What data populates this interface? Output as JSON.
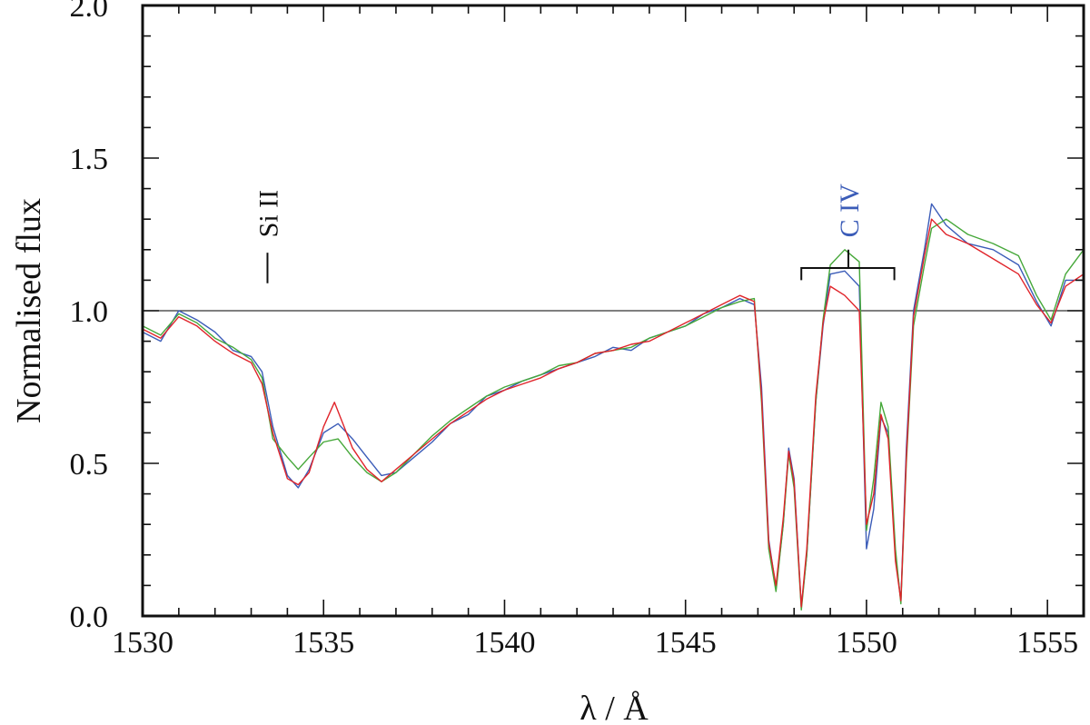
{
  "chart_data": {
    "type": "line",
    "xlabel": "λ / Å",
    "ylabel": "Normalised flux",
    "xlim": [
      1530,
      1556
    ],
    "ylim": [
      0.0,
      2.0
    ],
    "x_ticks": [
      1530,
      1535,
      1540,
      1545,
      1550,
      1555
    ],
    "x_tick_labels": [
      "1530",
      "1535",
      "1540",
      "1545",
      "1550",
      "1555"
    ],
    "y_ticks": [
      0.0,
      0.5,
      1.0,
      1.5,
      2.0
    ],
    "y_tick_labels": [
      "0.0",
      "0.5",
      "1.0",
      "1.5",
      "2.0"
    ],
    "grid": false,
    "continuum_level": 1.0,
    "series": [
      {
        "color": "#3b5cb8",
        "points": [
          [
            1530.0,
            0.93
          ],
          [
            1530.5,
            0.9
          ],
          [
            1531.0,
            1.0
          ],
          [
            1531.5,
            0.97
          ],
          [
            1532.0,
            0.93
          ],
          [
            1532.5,
            0.87
          ],
          [
            1533.0,
            0.85
          ],
          [
            1533.3,
            0.8
          ],
          [
            1533.6,
            0.62
          ],
          [
            1534.0,
            0.46
          ],
          [
            1534.3,
            0.42
          ],
          [
            1534.6,
            0.48
          ],
          [
            1535.0,
            0.6
          ],
          [
            1535.4,
            0.63
          ],
          [
            1535.8,
            0.58
          ],
          [
            1536.2,
            0.52
          ],
          [
            1536.6,
            0.46
          ],
          [
            1537.0,
            0.47
          ],
          [
            1537.5,
            0.52
          ],
          [
            1538.0,
            0.57
          ],
          [
            1538.5,
            0.63
          ],
          [
            1539.0,
            0.66
          ],
          [
            1539.5,
            0.72
          ],
          [
            1540.0,
            0.74
          ],
          [
            1540.5,
            0.77
          ],
          [
            1541.0,
            0.79
          ],
          [
            1541.5,
            0.81
          ],
          [
            1542.0,
            0.83
          ],
          [
            1542.5,
            0.85
          ],
          [
            1543.0,
            0.88
          ],
          [
            1543.5,
            0.87
          ],
          [
            1544.0,
            0.91
          ],
          [
            1544.5,
            0.93
          ],
          [
            1545.0,
            0.95
          ],
          [
            1545.5,
            0.99
          ],
          [
            1546.0,
            1.01
          ],
          [
            1546.5,
            1.04
          ],
          [
            1546.9,
            1.02
          ],
          [
            1547.1,
            0.75
          ],
          [
            1547.3,
            0.25
          ],
          [
            1547.5,
            0.09
          ],
          [
            1547.7,
            0.3
          ],
          [
            1547.85,
            0.55
          ],
          [
            1548.0,
            0.45
          ],
          [
            1548.2,
            0.03
          ],
          [
            1548.35,
            0.2
          ],
          [
            1548.6,
            0.7
          ],
          [
            1548.8,
            0.95
          ],
          [
            1549.0,
            1.12
          ],
          [
            1549.4,
            1.13
          ],
          [
            1549.8,
            1.08
          ],
          [
            1550.0,
            0.22
          ],
          [
            1550.2,
            0.35
          ],
          [
            1550.4,
            0.65
          ],
          [
            1550.6,
            0.6
          ],
          [
            1550.8,
            0.2
          ],
          [
            1550.95,
            0.05
          ],
          [
            1551.1,
            0.55
          ],
          [
            1551.3,
            1.0
          ],
          [
            1551.6,
            1.2
          ],
          [
            1551.8,
            1.35
          ],
          [
            1552.2,
            1.28
          ],
          [
            1552.8,
            1.22
          ],
          [
            1553.5,
            1.2
          ],
          [
            1554.2,
            1.15
          ],
          [
            1554.7,
            1.03
          ],
          [
            1555.1,
            0.95
          ],
          [
            1555.5,
            1.1
          ],
          [
            1556.0,
            1.1
          ]
        ]
      },
      {
        "color": "#46a83a",
        "points": [
          [
            1530.0,
            0.95
          ],
          [
            1530.5,
            0.92
          ],
          [
            1531.0,
            0.99
          ],
          [
            1531.5,
            0.96
          ],
          [
            1532.0,
            0.91
          ],
          [
            1532.5,
            0.88
          ],
          [
            1533.0,
            0.84
          ],
          [
            1533.3,
            0.78
          ],
          [
            1533.6,
            0.58
          ],
          [
            1534.0,
            0.52
          ],
          [
            1534.3,
            0.48
          ],
          [
            1534.6,
            0.52
          ],
          [
            1535.0,
            0.57
          ],
          [
            1535.4,
            0.58
          ],
          [
            1535.8,
            0.52
          ],
          [
            1536.2,
            0.47
          ],
          [
            1536.6,
            0.44
          ],
          [
            1537.0,
            0.47
          ],
          [
            1537.5,
            0.53
          ],
          [
            1538.0,
            0.59
          ],
          [
            1538.5,
            0.64
          ],
          [
            1539.0,
            0.68
          ],
          [
            1539.5,
            0.72
          ],
          [
            1540.0,
            0.75
          ],
          [
            1540.5,
            0.77
          ],
          [
            1541.0,
            0.79
          ],
          [
            1541.5,
            0.82
          ],
          [
            1542.0,
            0.83
          ],
          [
            1542.5,
            0.86
          ],
          [
            1543.0,
            0.87
          ],
          [
            1543.5,
            0.88
          ],
          [
            1544.0,
            0.91
          ],
          [
            1544.5,
            0.93
          ],
          [
            1545.0,
            0.95
          ],
          [
            1545.5,
            0.98
          ],
          [
            1546.0,
            1.01
          ],
          [
            1546.5,
            1.03
          ],
          [
            1546.9,
            1.04
          ],
          [
            1547.1,
            0.7
          ],
          [
            1547.3,
            0.22
          ],
          [
            1547.5,
            0.08
          ],
          [
            1547.7,
            0.3
          ],
          [
            1547.85,
            0.53
          ],
          [
            1548.0,
            0.42
          ],
          [
            1548.2,
            0.02
          ],
          [
            1548.35,
            0.2
          ],
          [
            1548.6,
            0.7
          ],
          [
            1548.8,
            0.97
          ],
          [
            1549.0,
            1.15
          ],
          [
            1549.4,
            1.2
          ],
          [
            1549.8,
            1.16
          ],
          [
            1550.0,
            0.28
          ],
          [
            1550.2,
            0.45
          ],
          [
            1550.4,
            0.7
          ],
          [
            1550.6,
            0.62
          ],
          [
            1550.8,
            0.22
          ],
          [
            1550.95,
            0.04
          ],
          [
            1551.1,
            0.5
          ],
          [
            1551.3,
            0.95
          ],
          [
            1551.6,
            1.15
          ],
          [
            1551.8,
            1.27
          ],
          [
            1552.2,
            1.3
          ],
          [
            1552.8,
            1.25
          ],
          [
            1553.5,
            1.22
          ],
          [
            1554.2,
            1.18
          ],
          [
            1554.7,
            1.05
          ],
          [
            1555.1,
            0.97
          ],
          [
            1555.5,
            1.12
          ],
          [
            1556.0,
            1.2
          ]
        ]
      },
      {
        "color": "#e0242a",
        "points": [
          [
            1530.0,
            0.94
          ],
          [
            1530.5,
            0.91
          ],
          [
            1531.0,
            0.98
          ],
          [
            1531.5,
            0.95
          ],
          [
            1532.0,
            0.9
          ],
          [
            1532.5,
            0.86
          ],
          [
            1533.0,
            0.83
          ],
          [
            1533.3,
            0.76
          ],
          [
            1533.6,
            0.6
          ],
          [
            1534.0,
            0.45
          ],
          [
            1534.3,
            0.43
          ],
          [
            1534.6,
            0.47
          ],
          [
            1535.0,
            0.62
          ],
          [
            1535.3,
            0.7
          ],
          [
            1535.8,
            0.55
          ],
          [
            1536.2,
            0.48
          ],
          [
            1536.6,
            0.44
          ],
          [
            1537.0,
            0.48
          ],
          [
            1537.5,
            0.53
          ],
          [
            1538.0,
            0.58
          ],
          [
            1538.5,
            0.63
          ],
          [
            1539.0,
            0.67
          ],
          [
            1539.5,
            0.71
          ],
          [
            1540.0,
            0.74
          ],
          [
            1540.5,
            0.76
          ],
          [
            1541.0,
            0.78
          ],
          [
            1541.5,
            0.81
          ],
          [
            1542.0,
            0.83
          ],
          [
            1542.5,
            0.86
          ],
          [
            1543.0,
            0.87
          ],
          [
            1543.5,
            0.89
          ],
          [
            1544.0,
            0.9
          ],
          [
            1544.5,
            0.93
          ],
          [
            1545.0,
            0.96
          ],
          [
            1545.5,
            0.99
          ],
          [
            1546.0,
            1.02
          ],
          [
            1546.5,
            1.05
          ],
          [
            1546.9,
            1.03
          ],
          [
            1547.1,
            0.72
          ],
          [
            1547.3,
            0.24
          ],
          [
            1547.5,
            0.1
          ],
          [
            1547.7,
            0.32
          ],
          [
            1547.85,
            0.54
          ],
          [
            1548.0,
            0.44
          ],
          [
            1548.2,
            0.03
          ],
          [
            1548.35,
            0.22
          ],
          [
            1548.6,
            0.72
          ],
          [
            1548.8,
            0.96
          ],
          [
            1549.0,
            1.08
          ],
          [
            1549.4,
            1.05
          ],
          [
            1549.8,
            1.0
          ],
          [
            1550.0,
            0.3
          ],
          [
            1550.2,
            0.4
          ],
          [
            1550.4,
            0.66
          ],
          [
            1550.6,
            0.58
          ],
          [
            1550.8,
            0.18
          ],
          [
            1550.95,
            0.05
          ],
          [
            1551.1,
            0.52
          ],
          [
            1551.3,
            0.98
          ],
          [
            1551.6,
            1.18
          ],
          [
            1551.8,
            1.3
          ],
          [
            1552.2,
            1.25
          ],
          [
            1552.8,
            1.22
          ],
          [
            1553.5,
            1.17
          ],
          [
            1554.2,
            1.12
          ],
          [
            1554.7,
            1.02
          ],
          [
            1555.1,
            0.96
          ],
          [
            1555.5,
            1.08
          ],
          [
            1556.0,
            1.12
          ]
        ]
      }
    ],
    "annotations": [
      {
        "label": "Si II",
        "x": 1533.45,
        "y_marker": [
          1.09,
          1.19
        ],
        "y_text": 1.24,
        "color": "#111111"
      },
      {
        "label": "C IV",
        "x_left": 1548.2,
        "x_right": 1550.77,
        "x_mid": 1549.5,
        "y_bar": 1.14,
        "y_tick_bottom": 1.1,
        "y_mid_top": 1.2,
        "y_text": 1.24,
        "color": "#3b5cb8"
      }
    ]
  }
}
